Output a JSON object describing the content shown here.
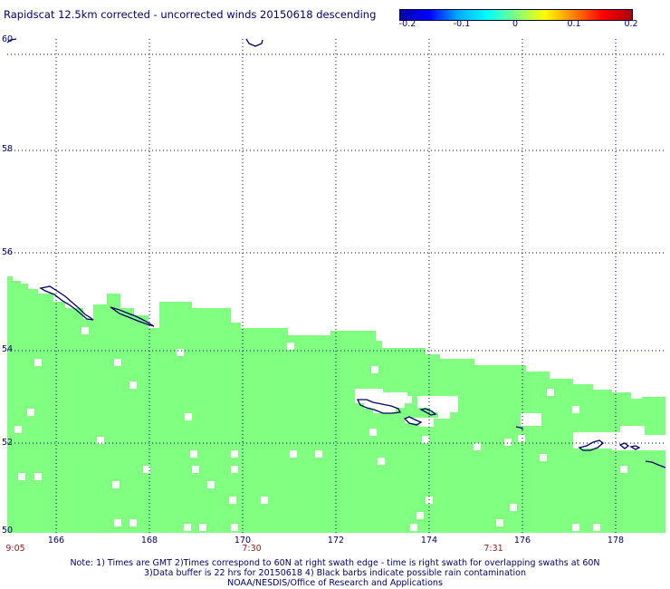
{
  "title": "Rapidscat 12.5km corrected - uncorrected winds 20150618 descending",
  "colorbar": {
    "colors": [
      "#0000aa",
      "#0000ff",
      "#00aaff",
      "#00ffff",
      "#80ff80",
      "#ffff00",
      "#ff8000",
      "#ff0000",
      "#aa0000"
    ],
    "labels": [
      "-0.2",
      "-0.1",
      "0",
      "0.1",
      "0.2"
    ]
  },
  "map": {
    "lat_labels": [
      "60",
      "58",
      "56",
      "54",
      "52",
      "50"
    ],
    "lon_labels": [
      "166",
      "168",
      "170",
      "172",
      "174",
      "176",
      "178"
    ],
    "time_labels": [
      "9:05",
      "7:30",
      "7:31"
    ],
    "swath_color": "#80ff80",
    "coast_color": "#000066",
    "grid": "dotted"
  },
  "notes": {
    "line1": "Note: 1) Times are GMT 2)Times correspond to 60N at right swath edge - time is right swath for overlapping swaths at 60N",
    "line2": "3)Data buffer is 22 hrs for 20150618 4) Black barbs indicate possible rain contamination",
    "line3": "NOAA/NESDIS/Office of Research and Applications"
  }
}
